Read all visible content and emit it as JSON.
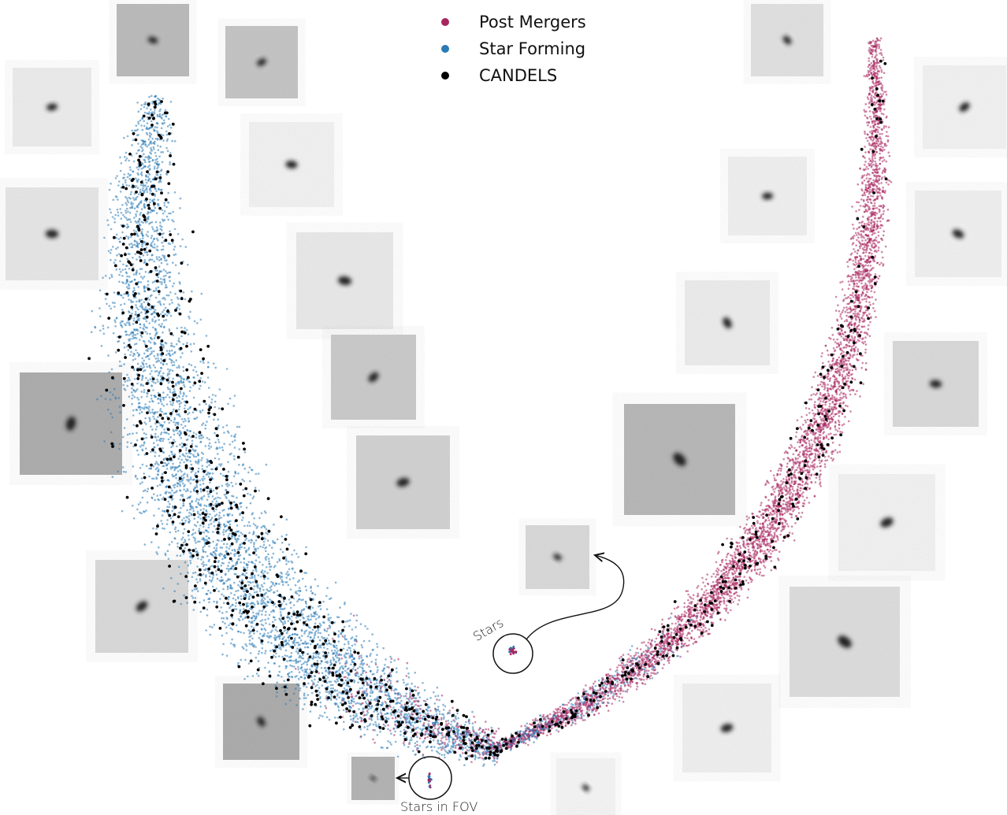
{
  "legend": {
    "items": [
      {
        "label": "Post Mergers",
        "color": "#a8245e"
      },
      {
        "label": "Star Forming",
        "color": "#2a7ab5"
      },
      {
        "label": "CANDELS",
        "color": "#000000"
      }
    ]
  },
  "annotations": {
    "stars": "Stars",
    "stars_in_fov": "Stars in FOV"
  }
}
